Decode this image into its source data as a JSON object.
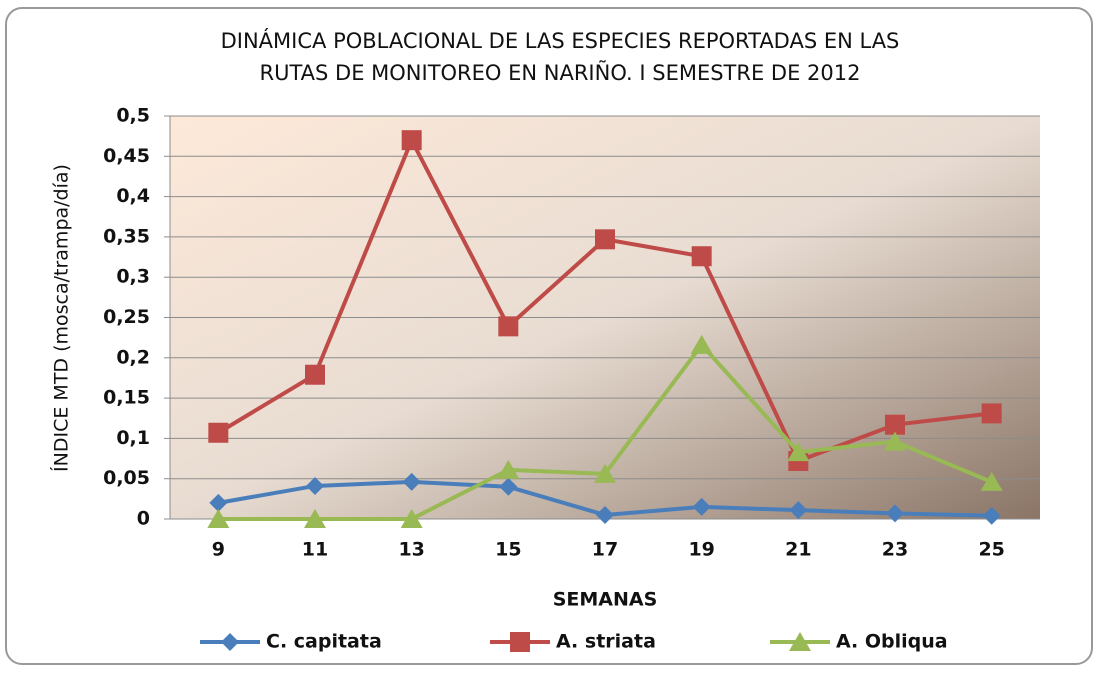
{
  "chart_data": {
    "type": "line",
    "title": [
      "DINÁMICA POBLACIONAL DE LAS ESPECIES REPORTADAS EN LAS",
      "RUTAS DE MONITOREO EN NARIÑO.  I SEMESTRE DE 2012"
    ],
    "xlabel": "SEMANAS",
    "ylabel": "ÍNDICE MTD (mosca/trampa/día)",
    "categories": [
      "9",
      "11",
      "13",
      "15",
      "17",
      "19",
      "21",
      "23",
      "25"
    ],
    "series": [
      {
        "name": "C. capitata",
        "color": "#4a7ebb",
        "marker": "diamond",
        "values": [
          0.02,
          0.041,
          0.046,
          0.04,
          0.005,
          0.015,
          0.011,
          0.007,
          0.004
        ]
      },
      {
        "name": "A. striata",
        "color": "#be4b48",
        "marker": "square",
        "values": [
          0.107,
          0.179,
          0.47,
          0.239,
          0.347,
          0.326,
          0.072,
          0.117,
          0.131
        ]
      },
      {
        "name": "A. Obliqua",
        "color": "#98b954",
        "marker": "triangle",
        "values": [
          0,
          0,
          0,
          0.061,
          0.056,
          0.216,
          0.083,
          0.096,
          0.046
        ]
      }
    ],
    "ylim": [
      0,
      0.5
    ],
    "yticks": [
      0,
      {
        "value": 0.05,
        "label": "0,05"
      },
      {
        "value": 0.1,
        "label": "0,1"
      },
      {
        "value": 0.15,
        "label": "0,15"
      },
      {
        "value": 0.2,
        "label": "0,2"
      },
      {
        "value": 0.25,
        "label": "0,25"
      },
      {
        "value": 0.3,
        "label": "0,3"
      },
      {
        "value": 0.35,
        "label": "0,35"
      },
      {
        "value": 0.4,
        "label": "0,4"
      },
      {
        "value": 0.45,
        "label": "0,45"
      },
      {
        "value": 0.5,
        "label": "0,5"
      }
    ],
    "grid": true,
    "legend": "bottom"
  }
}
